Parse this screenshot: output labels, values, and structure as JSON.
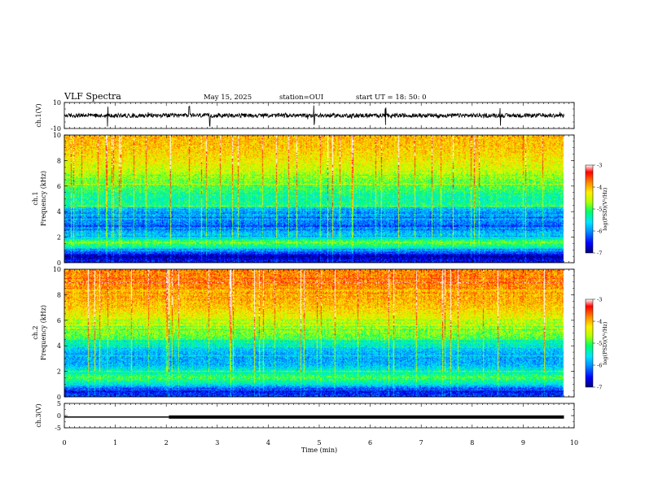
{
  "header": {
    "title": "VLF Spectra",
    "date": "May 15, 2025",
    "station": "station=OUI",
    "start": "start  UT =   18: 50: 0"
  },
  "colors": {
    "spectrum_colormap": [
      "#00007a",
      "#0000ff",
      "#0096ff",
      "#00e5ff",
      "#00ff6a",
      "#b4ff00",
      "#ffee00",
      "#ff8a00",
      "#ff0000",
      "#ffffff"
    ],
    "trace": "#000000"
  },
  "chart_data": [
    {
      "type": "line",
      "name": "ch1-waveform",
      "ylabel": "ch.1(V)",
      "ylim": [
        -10,
        10
      ],
      "yticks": [
        "10",
        "-10"
      ],
      "x": [
        0,
        1,
        2,
        3,
        4,
        5,
        6,
        7,
        8,
        9,
        9.8
      ],
      "values": [
        0,
        0,
        0,
        0,
        0,
        0,
        0,
        0,
        0,
        0,
        0
      ],
      "note_spikes_min": [
        0.85,
        2.45,
        2.85,
        4.9,
        6.3,
        8.55
      ]
    },
    {
      "type": "heatmap",
      "name": "ch1-spectrogram",
      "ylabel": "ch.1\nFrequency (kHz)",
      "ylim": [
        0,
        10
      ],
      "yticks": [
        "0",
        "2",
        "4",
        "6",
        "8",
        "10"
      ],
      "xlim": [
        0,
        10
      ],
      "data_extent_min": 9.8,
      "colorbar": {
        "label": "log(PSD)(V²/Hz)",
        "range": [
          -7,
          -3
        ],
        "ticks": [
          "-3",
          "-4",
          "-5",
          "-6",
          "-7"
        ]
      },
      "frequency_profile_logpsd": [
        [
          0.0,
          -6.4
        ],
        [
          0.5,
          -6.9
        ],
        [
          0.8,
          -6.3
        ],
        [
          1.2,
          -5.4
        ],
        [
          1.6,
          -4.9
        ],
        [
          2.0,
          -5.6
        ],
        [
          2.5,
          -5.9
        ],
        [
          3.0,
          -6.1
        ],
        [
          3.5,
          -6.0
        ],
        [
          4.0,
          -6.1
        ],
        [
          4.5,
          -5.2
        ],
        [
          5.0,
          -5.3
        ],
        [
          6.0,
          -5.0
        ],
        [
          7.0,
          -4.6
        ],
        [
          8.0,
          -4.3
        ],
        [
          9.0,
          -4.1
        ],
        [
          10.0,
          -4.0
        ]
      ]
    },
    {
      "type": "heatmap",
      "name": "ch2-spectrogram",
      "ylabel": "ch.2\nFrequency (kHz)",
      "ylim": [
        0,
        10
      ],
      "yticks": [
        "0",
        "2",
        "4",
        "6",
        "8",
        "10"
      ],
      "xlim": [
        0,
        10
      ],
      "data_extent_min": 9.8,
      "colorbar": {
        "label": "log(PSD)(V²/Hz)",
        "range": [
          -7,
          -3
        ],
        "ticks": [
          "-3",
          "-4",
          "-5",
          "-6",
          "-7"
        ]
      },
      "frequency_profile_logpsd": [
        [
          0.0,
          -6.3
        ],
        [
          0.5,
          -6.6
        ],
        [
          1.0,
          -5.5
        ],
        [
          1.5,
          -5.0
        ],
        [
          2.0,
          -5.4
        ],
        [
          2.5,
          -5.8
        ],
        [
          3.0,
          -5.9
        ],
        [
          3.5,
          -5.8
        ],
        [
          4.0,
          -5.6
        ],
        [
          4.5,
          -5.0
        ],
        [
          5.0,
          -4.8
        ],
        [
          6.0,
          -4.5
        ],
        [
          7.0,
          -4.1
        ],
        [
          8.0,
          -3.9
        ],
        [
          9.0,
          -3.8
        ],
        [
          10.0,
          -3.8
        ]
      ]
    },
    {
      "type": "line",
      "name": "ch3-level",
      "ylabel": "ch.3(V)",
      "ylim": [
        -5,
        5
      ],
      "yticks": [
        "5",
        "0",
        "-5"
      ],
      "x": [
        0,
        2.05,
        2.05,
        9.8
      ],
      "values": [
        -0.6,
        -0.6,
        -0.6,
        -0.6
      ]
    }
  ],
  "xaxis": {
    "label": "Time (min)",
    "ticks": [
      "0",
      "1",
      "2",
      "3",
      "4",
      "5",
      "6",
      "7",
      "8",
      "9",
      "10"
    ],
    "range": [
      0,
      10
    ]
  }
}
